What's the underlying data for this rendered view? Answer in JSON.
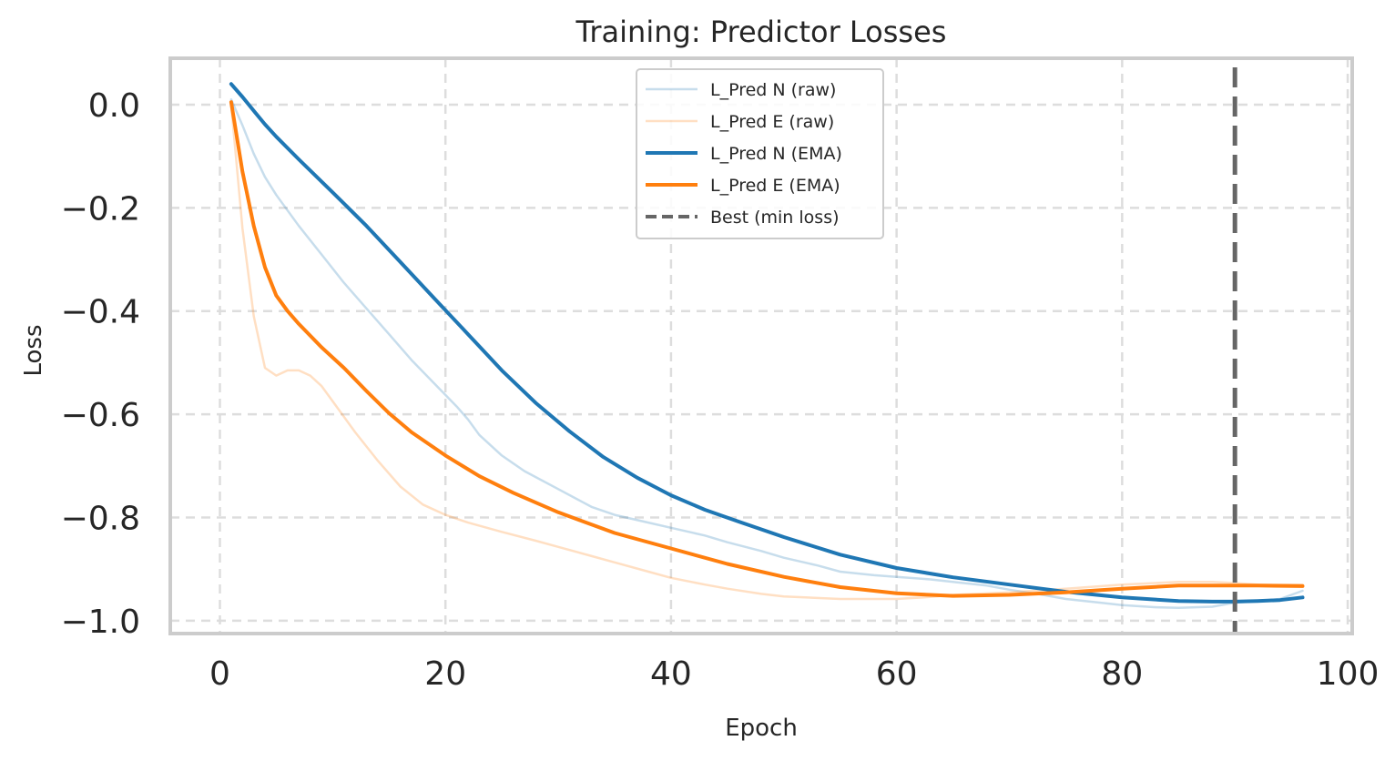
{
  "chart_data": {
    "type": "line",
    "title": "Training: Predictor Losses",
    "xlabel": "Epoch",
    "ylabel": "Loss",
    "xlim": [
      -4.4,
      100.4
    ],
    "ylim": [
      -1.025,
      0.09
    ],
    "xticks": [
      0,
      20,
      40,
      60,
      80,
      100
    ],
    "xtick_labels": [
      "0",
      "20",
      "40",
      "60",
      "80",
      "100"
    ],
    "yticks": [
      0.0,
      -0.2,
      -0.4,
      -0.6,
      -0.8,
      -1.0
    ],
    "ytick_labels": [
      "0.0",
      "−0.2",
      "−0.4",
      "−0.6",
      "−0.8",
      "−1.0"
    ],
    "grid": true,
    "legend_position": "top-center",
    "series": [
      {
        "name": "L_Pred N (raw)",
        "color": "#1f77b4",
        "style": "raw",
        "x": [
          1,
          2,
          3,
          4,
          5,
          7,
          9,
          11,
          13,
          15,
          17,
          19,
          21,
          22,
          23,
          25,
          27,
          30,
          33,
          35,
          38,
          40,
          43,
          45,
          48,
          50,
          53,
          55,
          58,
          60,
          63,
          65,
          68,
          70,
          73,
          75,
          78,
          80,
          83,
          85,
          88,
          90,
          92,
          94,
          96
        ],
        "y": [
          0.01,
          -0.04,
          -0.095,
          -0.14,
          -0.175,
          -0.235,
          -0.29,
          -0.345,
          -0.395,
          -0.445,
          -0.495,
          -0.54,
          -0.585,
          -0.61,
          -0.64,
          -0.68,
          -0.71,
          -0.745,
          -0.78,
          -0.795,
          -0.81,
          -0.82,
          -0.835,
          -0.848,
          -0.865,
          -0.878,
          -0.893,
          -0.905,
          -0.912,
          -0.915,
          -0.92,
          -0.925,
          -0.932,
          -0.94,
          -0.95,
          -0.958,
          -0.965,
          -0.97,
          -0.974,
          -0.975,
          -0.973,
          -0.965,
          -0.962,
          -0.958,
          -0.942
        ]
      },
      {
        "name": "L_Pred E (raw)",
        "color": "#ff7f0e",
        "style": "raw",
        "x": [
          1,
          2,
          3,
          4,
          5,
          6,
          7,
          8,
          9,
          10,
          12,
          14,
          16,
          18,
          20,
          22,
          25,
          28,
          30,
          33,
          35,
          38,
          40,
          43,
          45,
          48,
          50,
          55,
          58,
          60,
          63,
          65,
          70,
          75,
          80,
          85,
          88,
          90,
          92,
          96
        ],
        "y": [
          0.0,
          -0.24,
          -0.41,
          -0.51,
          -0.525,
          -0.515,
          -0.515,
          -0.525,
          -0.545,
          -0.575,
          -0.635,
          -0.69,
          -0.74,
          -0.775,
          -0.795,
          -0.81,
          -0.828,
          -0.845,
          -0.857,
          -0.875,
          -0.887,
          -0.905,
          -0.917,
          -0.93,
          -0.938,
          -0.948,
          -0.953,
          -0.958,
          -0.958,
          -0.958,
          -0.954,
          -0.95,
          -0.945,
          -0.938,
          -0.93,
          -0.925,
          -0.925,
          -0.927,
          -0.93,
          -0.93
        ]
      },
      {
        "name": "L_Pred N (EMA)",
        "color": "#1f77b4",
        "style": "ema",
        "x": [
          1,
          2,
          3,
          4,
          5,
          7,
          10,
          13,
          16,
          19,
          22,
          25,
          28,
          31,
          34,
          37,
          40,
          43,
          46,
          50,
          55,
          60,
          65,
          70,
          75,
          80,
          85,
          88,
          90,
          92,
          94,
          96
        ],
        "y": [
          0.04,
          0.015,
          -0.012,
          -0.038,
          -0.062,
          -0.106,
          -0.17,
          -0.235,
          -0.305,
          -0.375,
          -0.445,
          -0.515,
          -0.578,
          -0.633,
          -0.683,
          -0.723,
          -0.757,
          -0.785,
          -0.808,
          -0.838,
          -0.872,
          -0.898,
          -0.916,
          -0.93,
          -0.944,
          -0.955,
          -0.962,
          -0.963,
          -0.963,
          -0.962,
          -0.96,
          -0.955
        ]
      },
      {
        "name": "L_Pred E (EMA)",
        "color": "#ff7f0e",
        "style": "ema",
        "x": [
          1,
          2,
          3,
          4,
          5,
          6,
          7,
          9,
          11,
          13,
          15,
          17,
          20,
          23,
          26,
          30,
          35,
          40,
          45,
          50,
          55,
          60,
          65,
          70,
          75,
          80,
          85,
          88,
          90,
          92,
          96
        ],
        "y": [
          0.005,
          -0.13,
          -0.235,
          -0.315,
          -0.37,
          -0.4,
          -0.425,
          -0.47,
          -0.51,
          -0.555,
          -0.598,
          -0.635,
          -0.68,
          -0.72,
          -0.752,
          -0.79,
          -0.83,
          -0.86,
          -0.89,
          -0.915,
          -0.935,
          -0.947,
          -0.952,
          -0.95,
          -0.945,
          -0.938,
          -0.932,
          -0.932,
          -0.932,
          -0.932,
          -0.933
        ]
      }
    ],
    "annotations": [
      {
        "name": "Best (min loss)",
        "type": "vline",
        "x": 90,
        "color": "#666666"
      }
    ]
  }
}
